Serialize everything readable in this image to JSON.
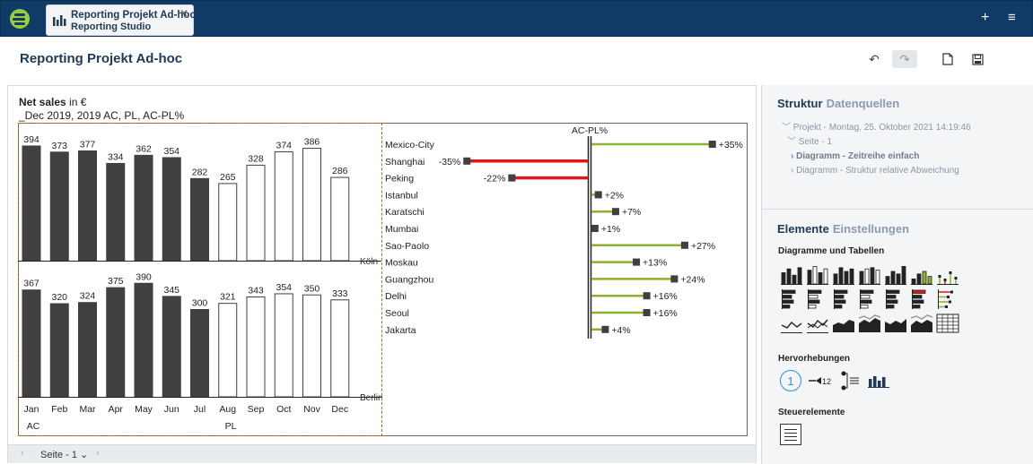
{
  "app": {
    "tab_title": "Reporting Projekt Ad-hoc",
    "tab_subtitle": "Reporting Studio",
    "close_glyph": "✕",
    "plus_glyph": "+",
    "menu_glyph": "≡"
  },
  "header": {
    "title": "Reporting Projekt Ad-hoc",
    "undo_glyph": "↶",
    "redo_glyph": "↷",
    "new_glyph": "🗋",
    "save_glyph": "🖫"
  },
  "chart": {
    "title_bold": "Net sales",
    "title_rest": " in €",
    "subtitle": "_Dec 2019, 2019 AC, PL, AC-PL%"
  },
  "chart_data": [
    {
      "type": "bar",
      "title": "Köln",
      "categories": [
        "Jan",
        "Feb",
        "Mar",
        "Apr",
        "May",
        "Jun",
        "Jul",
        "Aug",
        "Sep",
        "Oct",
        "Nov",
        "Dec"
      ],
      "values": [
        394,
        373,
        377,
        334,
        362,
        354,
        282,
        265,
        328,
        374,
        386,
        286
      ],
      "scenario": [
        "AC",
        "AC",
        "AC",
        "AC",
        "AC",
        "AC",
        "AC",
        "PL",
        "PL",
        "PL",
        "PL",
        "PL"
      ]
    },
    {
      "type": "bar",
      "title": "Berlin",
      "categories": [
        "Jan",
        "Feb",
        "Mar",
        "Apr",
        "May",
        "Jun",
        "Jul",
        "Aug",
        "Sep",
        "Oct",
        "Nov",
        "Dec"
      ],
      "values": [
        367,
        320,
        324,
        375,
        390,
        345,
        300,
        321,
        343,
        354,
        350,
        333
      ],
      "scenario": [
        "AC",
        "AC",
        "AC",
        "AC",
        "AC",
        "AC",
        "AC",
        "PL",
        "PL",
        "PL",
        "PL",
        "PL"
      ],
      "group_labels": [
        "AC",
        "PL"
      ]
    },
    {
      "type": "bar",
      "orientation": "horizontal",
      "title": "AC-PL%",
      "categories": [
        "Mexico-City",
        "Shanghai",
        "Peking",
        "Istanbul",
        "Karatschi",
        "Mumbai",
        "Sao-Paolo",
        "Moskau",
        "Guangzhou",
        "Delhi",
        "Seoul",
        "Jakarta"
      ],
      "values": [
        35,
        -35,
        -22,
        2,
        7,
        1,
        27,
        13,
        24,
        16,
        16,
        4
      ],
      "value_labels": [
        "+35%",
        "-35%",
        "-22%",
        "+2%",
        "+7%",
        "+1%",
        "+27%",
        "+13%",
        "+24%",
        "+16%",
        "+16%",
        "+4%"
      ],
      "colors": {
        "positive": "#8db32a",
        "negative": "#e0161b",
        "ac": "#404040"
      }
    }
  ],
  "pager": {
    "prev_glyph": "‹",
    "page_label": "Seite - 1 ⌄",
    "next_glyph": "›"
  },
  "panel": {
    "tab_structure": "Struktur",
    "tab_sources": "Datenquellen",
    "tree": [
      "﹀ Projekt - Montag, 25. Oktober 2021 14:19:46",
      "﹀ Seite - 1",
      "› Diagramm - Zeitreihe einfach",
      "› Diagramm - Struktur relative Abweichung"
    ],
    "tab_elements": "Elemente",
    "tab_settings": "Einstellungen",
    "sec_charts": "Diagramme und Tabellen",
    "sec_highlights": "Hervorhebungen",
    "sec_controls": "Steuerelemente",
    "highlight_number": "1",
    "highlight_value": "12"
  }
}
